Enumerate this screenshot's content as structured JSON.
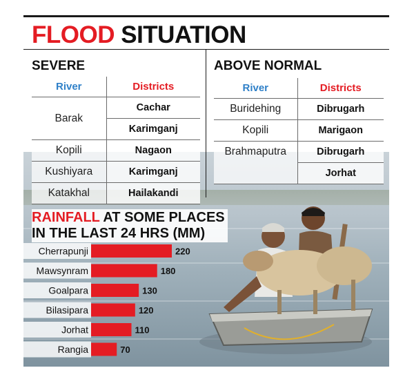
{
  "title": {
    "part1": "FLOOD",
    "part2": "SITUATION"
  },
  "severe": {
    "heading": "SEVERE",
    "col_river": "River",
    "col_districts": "Districts",
    "rows": [
      {
        "river": "Barak",
        "districts": [
          "Cachar",
          "Karimganj"
        ]
      },
      {
        "river": "Kopili",
        "districts": [
          "Nagaon"
        ]
      },
      {
        "river": "Kushiyara",
        "districts": [
          "Karimganj"
        ]
      },
      {
        "river": "Katakhal",
        "districts": [
          "Hailakandi"
        ]
      }
    ]
  },
  "above_normal": {
    "heading": "ABOVE NORMAL",
    "col_river": "River",
    "col_districts": "Districts",
    "rows": [
      {
        "river": "Buridehing",
        "districts": [
          "Dibrugarh"
        ]
      },
      {
        "river": "Kopili",
        "districts": [
          "Marigaon"
        ]
      },
      {
        "river": "Brahmaputra",
        "districts": [
          "Dibrugarh",
          "Jorhat"
        ]
      }
    ]
  },
  "rainfall": {
    "title_highlight": "RAINFALL",
    "title_rest_line1": " AT SOME PLACES",
    "title_line2": "IN THE LAST 24 HRS (MM)"
  },
  "colors": {
    "accent_red": "#e41c23",
    "river_blue": "#2f80c8",
    "bar_red": "#e41c23"
  },
  "chart_data": {
    "type": "bar",
    "orientation": "horizontal",
    "title": "RAINFALL AT SOME PLACES IN THE LAST 24 HRS (MM)",
    "categories": [
      "Cherrapunji",
      "Mawsynram",
      "Goalpara",
      "Bilasipara",
      "Jorhat",
      "Rangia"
    ],
    "values": [
      220,
      180,
      130,
      120,
      110,
      70
    ],
    "xlim": [
      0,
      220
    ],
    "grid": false,
    "legend": "none"
  }
}
